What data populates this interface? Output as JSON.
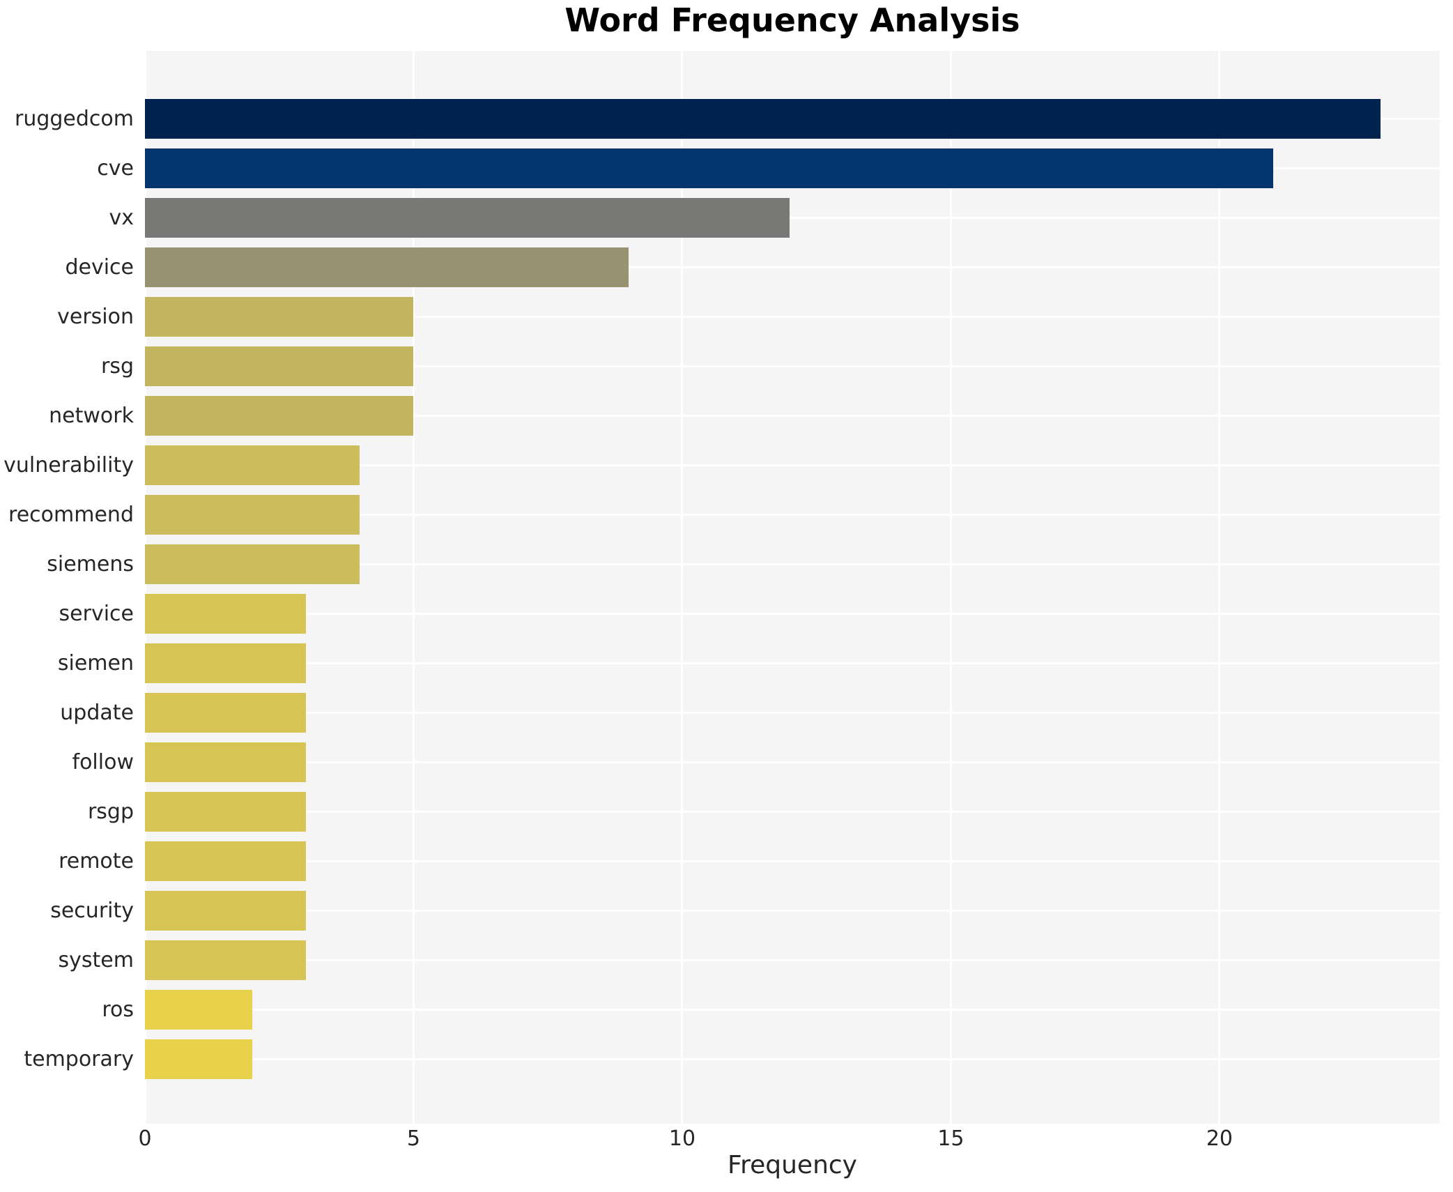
{
  "title": "Word Frequency Analysis",
  "chart_data": {
    "type": "bar",
    "orientation": "horizontal",
    "title": "Word Frequency Analysis",
    "xlabel": "Frequency",
    "ylabel": "",
    "categories": [
      "ruggedcom",
      "cve",
      "vx",
      "device",
      "version",
      "rsg",
      "network",
      "vulnerability",
      "recommend",
      "siemens",
      "service",
      "siemen",
      "update",
      "follow",
      "rsgp",
      "remote",
      "security",
      "system",
      "ros",
      "temporary"
    ],
    "values": [
      23,
      21,
      12,
      9,
      5,
      5,
      5,
      4,
      4,
      4,
      3,
      3,
      3,
      3,
      3,
      3,
      3,
      3,
      2,
      2
    ],
    "bar_colors": [
      "#00224e",
      "#04356e",
      "#787877",
      "#999270",
      "#c3b45f",
      "#c3b45f",
      "#c3b45f",
      "#cbbc5d",
      "#cbbc5d",
      "#cbbc5d",
      "#d6c454",
      "#d6c454",
      "#d6c454",
      "#d6c454",
      "#d6c454",
      "#d6c454",
      "#d6c454",
      "#d6c454",
      "#e8d24b",
      "#e8d24b"
    ],
    "xticks": [
      0,
      5,
      10,
      15,
      20
    ],
    "xlim": [
      0,
      24.1
    ],
    "grid": true,
    "legend": "none",
    "plot_background": "#f5f5f5",
    "grid_color": "#ffffff",
    "text_color": "#262626",
    "title_color": "#000000"
  }
}
